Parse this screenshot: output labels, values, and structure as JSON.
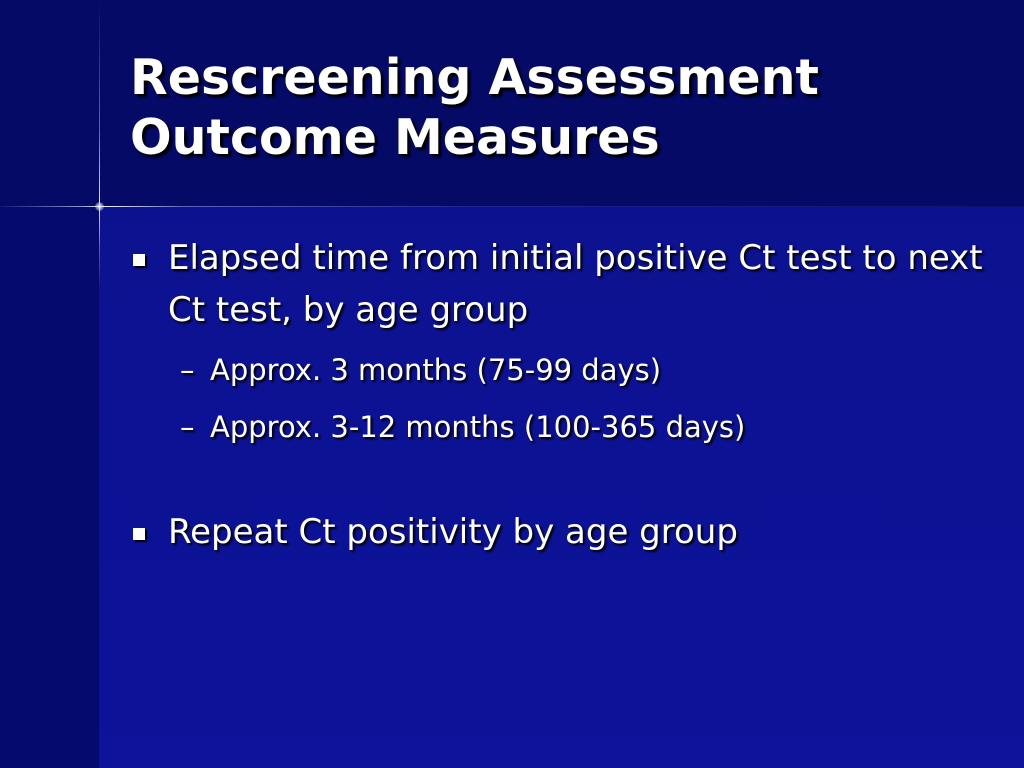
{
  "slide": {
    "title_lines": [
      "Rescreening Assessment",
      "Outcome Measures"
    ],
    "bullets": [
      {
        "text": "Elapsed time from initial positive Ct test to next Ct test, by age group",
        "sub_items": [
          "Approx. 3 months (75-99 days)",
          "Approx. 3-12 months (100-365 days)"
        ]
      },
      {
        "text": "Repeat Ct positivity by age group"
      }
    ],
    "sub_marker": "–"
  },
  "colors": {
    "background": "#0b118a",
    "title_band": "#040a66",
    "text": "#ffffff",
    "text_shadow": "#000000"
  }
}
